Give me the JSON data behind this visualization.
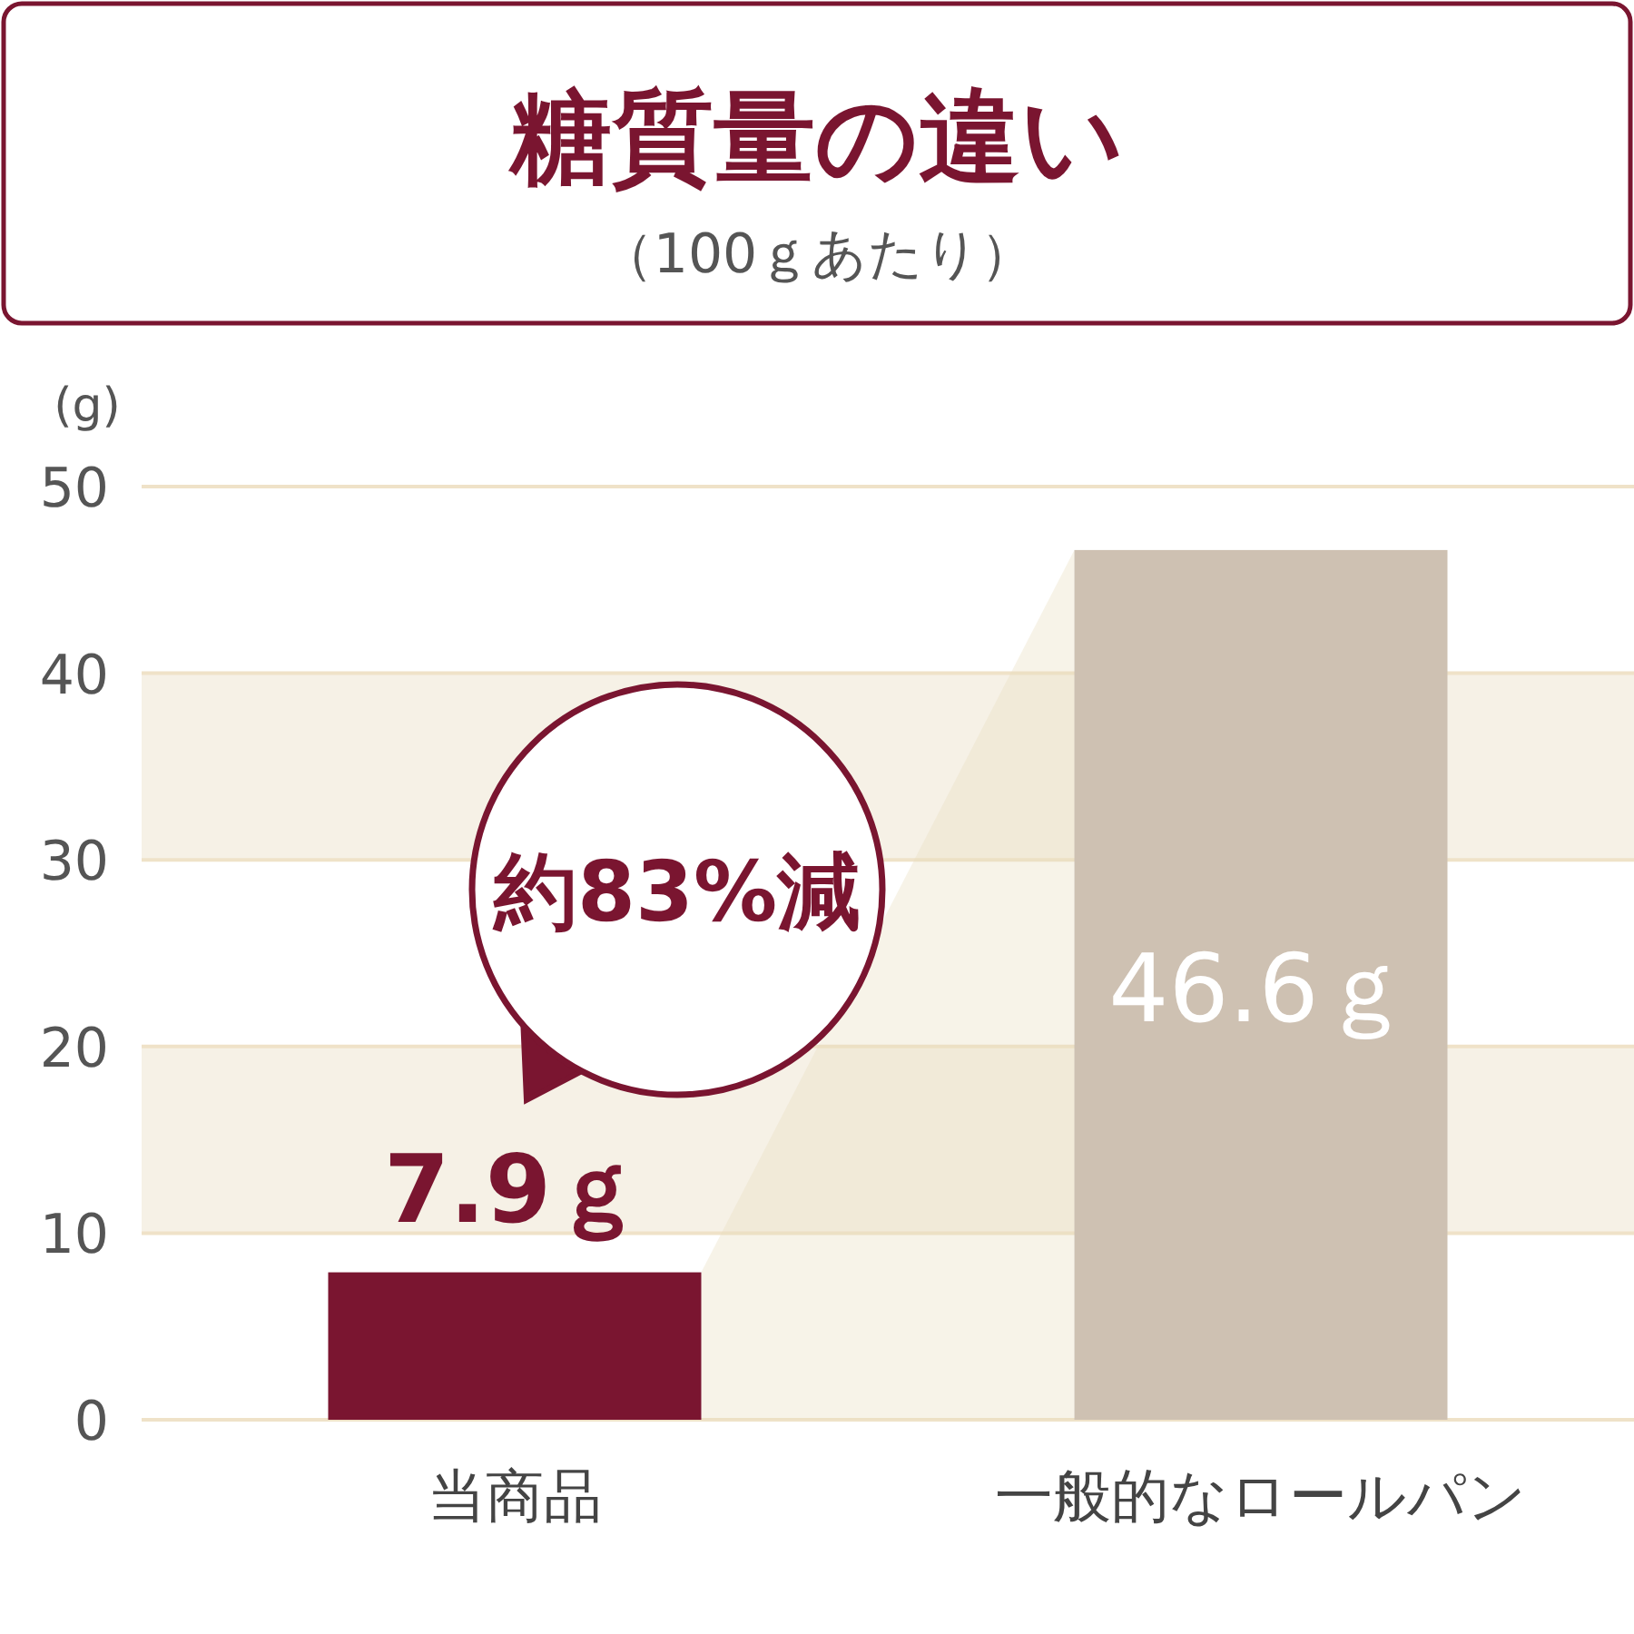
{
  "chart_data": {
    "type": "bar",
    "title": "糖質量の違い",
    "subtitle": "（100ｇあたり）",
    "ylabel": "(g)",
    "categories": [
      "当商品",
      "一般的なロールパン"
    ],
    "values": [
      7.9,
      46.6
    ],
    "colors": [
      "#7a1530",
      "#cec1b2"
    ],
    "value_labels": [
      "7.9ｇ",
      "46.6ｇ"
    ],
    "ylim": [
      0,
      50
    ],
    "yticks": [
      0,
      10,
      20,
      30,
      40,
      50
    ],
    "grid": "y",
    "bands": [
      {
        "axis": "y",
        "from": 10,
        "to": 20,
        "color": "#f6f1e6"
      },
      {
        "axis": "y",
        "from": 30,
        "to": 40,
        "color": "#f6f1e6"
      }
    ],
    "annotations": [
      "約83%減"
    ]
  }
}
